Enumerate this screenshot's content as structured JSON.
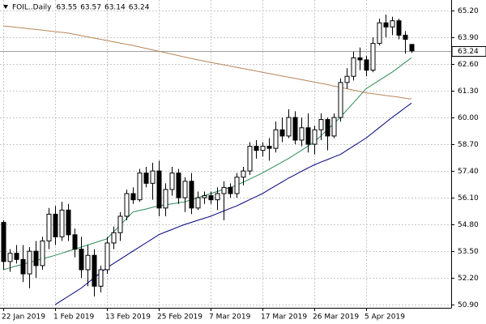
{
  "chart_data": {
    "type": "candlestick",
    "title": "FOIL..Daily",
    "categories": [
      "22 Jan 2019",
      null,
      null,
      null,
      null,
      null,
      null,
      null,
      "1 Feb 2019",
      null,
      null,
      null,
      null,
      null,
      null,
      null,
      "13 Feb 2019",
      null,
      null,
      null,
      null,
      null,
      null,
      null,
      "25 Feb 2019",
      null,
      null,
      null,
      null,
      null,
      null,
      null,
      "7 Mar 2019",
      null,
      null,
      null,
      null,
      null,
      null,
      null,
      "17 Mar 2019",
      null,
      null,
      null,
      null,
      null,
      null,
      null,
      "26 Mar 2019",
      null,
      null,
      null,
      null,
      null,
      null,
      null,
      "5 Apr 2019",
      null,
      null,
      null,
      null,
      null,
      null,
      null
    ],
    "open": [
      54.9,
      53.0,
      53.4,
      53.1,
      52.4,
      53.5,
      52.8,
      54.0,
      55.3,
      54.2,
      55.5,
      54.3,
      53.6,
      52.6,
      53.3,
      51.8,
      52.6,
      53.9,
      54.4,
      55.2,
      56.3,
      56.0,
      57.3,
      56.8,
      57.4,
      55.6,
      56.5,
      57.3,
      56.1,
      56.9,
      55.6,
      56.1,
      56.2,
      56.0,
      56.3,
      56.6,
      56.3,
      57.1,
      57.4,
      58.6,
      58.4,
      58.6,
      58.5,
      59.4,
      59.1,
      60.0,
      58.9,
      59.5,
      58.7,
      59.4,
      59.9,
      59.1,
      60.0,
      61.7,
      62.0,
      62.9,
      62.8,
      62.3,
      63.6,
      64.6,
      64.4,
      64.7,
      64.0,
      63.55
    ],
    "high": [
      55.0,
      53.6,
      53.8,
      53.8,
      53.7,
      54.0,
      54.2,
      55.6,
      55.7,
      55.9,
      55.8,
      54.6,
      54.2,
      53.8,
      53.6,
      52.8,
      54.2,
      54.7,
      55.4,
      56.5,
      56.6,
      57.5,
      57.6,
      57.8,
      57.9,
      56.8,
      57.6,
      57.5,
      57.1,
      57.3,
      56.4,
      56.4,
      56.4,
      56.6,
      56.9,
      56.8,
      57.3,
      57.6,
      58.8,
      58.9,
      58.8,
      59.0,
      59.8,
      60.0,
      60.4,
      60.3,
      60.0,
      60.2,
      59.6,
      60.2,
      60.0,
      60.2,
      61.9,
      62.4,
      63.2,
      63.4,
      63.0,
      63.9,
      64.8,
      65.0,
      64.9,
      64.8,
      64.2,
      63.57
    ],
    "low": [
      52.6,
      52.5,
      52.9,
      52.0,
      51.7,
      52.2,
      52.6,
      53.6,
      53.8,
      54.0,
      54.0,
      53.2,
      52.2,
      51.8,
      51.3,
      51.5,
      52.4,
      53.6,
      54.0,
      55.0,
      55.8,
      55.9,
      56.6,
      56.0,
      55.2,
      55.2,
      56.2,
      55.8,
      55.4,
      55.3,
      55.5,
      55.8,
      55.8,
      55.5,
      55.0,
      56.1,
      56.1,
      56.7,
      57.2,
      58.0,
      58.1,
      57.9,
      58.3,
      58.8,
      59.0,
      58.7,
      58.6,
      58.3,
      58.2,
      58.9,
      58.4,
      59.0,
      59.8,
      61.4,
      61.8,
      62.3,
      62.0,
      62.2,
      63.5,
      63.9,
      64.0,
      63.8,
      63.1,
      63.14
    ],
    "close": [
      53.0,
      53.4,
      53.1,
      52.4,
      53.5,
      52.8,
      54.0,
      55.3,
      54.2,
      55.5,
      54.3,
      53.6,
      52.6,
      53.3,
      51.8,
      52.6,
      53.9,
      54.4,
      55.2,
      56.3,
      56.0,
      57.3,
      56.8,
      57.4,
      55.6,
      56.5,
      57.3,
      56.1,
      56.9,
      55.6,
      56.1,
      56.2,
      56.0,
      56.3,
      56.6,
      56.3,
      57.1,
      57.4,
      58.6,
      58.4,
      58.6,
      58.5,
      59.4,
      59.1,
      60.0,
      58.9,
      59.5,
      58.7,
      59.4,
      59.9,
      59.1,
      60.0,
      61.7,
      62.0,
      62.9,
      62.8,
      62.3,
      63.6,
      64.6,
      64.4,
      64.7,
      64.0,
      63.8,
      63.24
    ],
    "moving_averages": [
      {
        "color": "#2e8b57",
        "values": [
          52.6,
          52.69,
          52.78,
          52.86,
          52.95,
          53.04,
          53.13,
          53.21,
          53.3,
          53.4,
          53.5,
          53.6,
          53.7,
          53.8,
          53.9,
          54.0,
          54.1,
          54.43,
          54.75,
          55.08,
          55.4,
          55.48,
          55.55,
          55.63,
          55.7,
          55.75,
          55.8,
          55.85,
          55.9,
          56.0,
          56.1,
          56.2,
          56.3,
          56.4,
          56.5,
          56.6,
          56.7,
          56.85,
          57.0,
          57.15,
          57.3,
          57.48,
          57.65,
          57.83,
          58.0,
          58.2,
          58.4,
          58.6,
          58.8,
          59.1,
          59.4,
          59.7,
          60.0,
          60.35,
          60.7,
          61.05,
          61.4,
          61.6,
          61.8,
          62.0,
          62.2,
          62.43,
          62.67,
          62.9
        ]
      },
      {
        "color": "#000080",
        "values": [
          null,
          null,
          null,
          null,
          null,
          null,
          null,
          null,
          50.9,
          51.1,
          51.3,
          51.5,
          51.7,
          51.95,
          52.2,
          52.45,
          52.7,
          52.9,
          53.1,
          53.3,
          53.5,
          53.7,
          53.9,
          54.1,
          54.3,
          54.43,
          54.55,
          54.68,
          54.8,
          54.9,
          55.0,
          55.1,
          55.2,
          55.33,
          55.45,
          55.58,
          55.7,
          55.85,
          56.0,
          56.15,
          56.3,
          56.49,
          56.68,
          56.86,
          57.05,
          57.21,
          57.38,
          57.54,
          57.7,
          57.83,
          57.95,
          58.08,
          58.2,
          58.4,
          58.6,
          58.8,
          59.0,
          59.25,
          59.5,
          59.75,
          60.0,
          60.23,
          60.47,
          60.7
        ]
      },
      {
        "color": "#b8865a",
        "values": [
          64.45,
          64.42,
          64.38,
          64.35,
          64.31,
          64.28,
          64.24,
          64.21,
          64.17,
          64.14,
          64.1,
          64.04,
          63.98,
          63.92,
          63.86,
          63.8,
          63.74,
          63.68,
          63.62,
          63.56,
          63.5,
          63.43,
          63.36,
          63.29,
          63.22,
          63.15,
          63.08,
          63.01,
          62.94,
          62.87,
          62.8,
          62.74,
          62.68,
          62.62,
          62.56,
          62.5,
          62.44,
          62.38,
          62.32,
          62.26,
          62.2,
          62.14,
          62.08,
          62.02,
          61.96,
          61.9,
          61.84,
          61.78,
          61.72,
          61.66,
          61.6,
          61.53,
          61.47,
          61.4,
          61.33,
          61.27,
          61.2,
          61.16,
          61.11,
          61.07,
          61.03,
          60.99,
          60.94,
          60.9
        ]
      }
    ],
    "ylim": [
      50.75,
      65.71
    ],
    "yticks": [
      {
        "value": 50.9,
        "label": "50.90"
      },
      {
        "value": 52.2,
        "label": "52.20"
      },
      {
        "value": 53.5,
        "label": "53.50"
      },
      {
        "value": 54.8,
        "label": "54.80"
      },
      {
        "value": 56.1,
        "label": "56.10"
      },
      {
        "value": 57.4,
        "label": "57.40"
      },
      {
        "value": 58.7,
        "label": "58.70"
      },
      {
        "value": 60.0,
        "label": "60.00"
      },
      {
        "value": 61.3,
        "label": "61.30"
      },
      {
        "value": 62.6,
        "label": "62.60"
      },
      {
        "value": 63.9,
        "label": "63.90"
      },
      {
        "value": 65.2,
        "label": "65.20"
      }
    ],
    "grid": true,
    "up_color": "#ffffff",
    "down_color": "#000000"
  }
}
